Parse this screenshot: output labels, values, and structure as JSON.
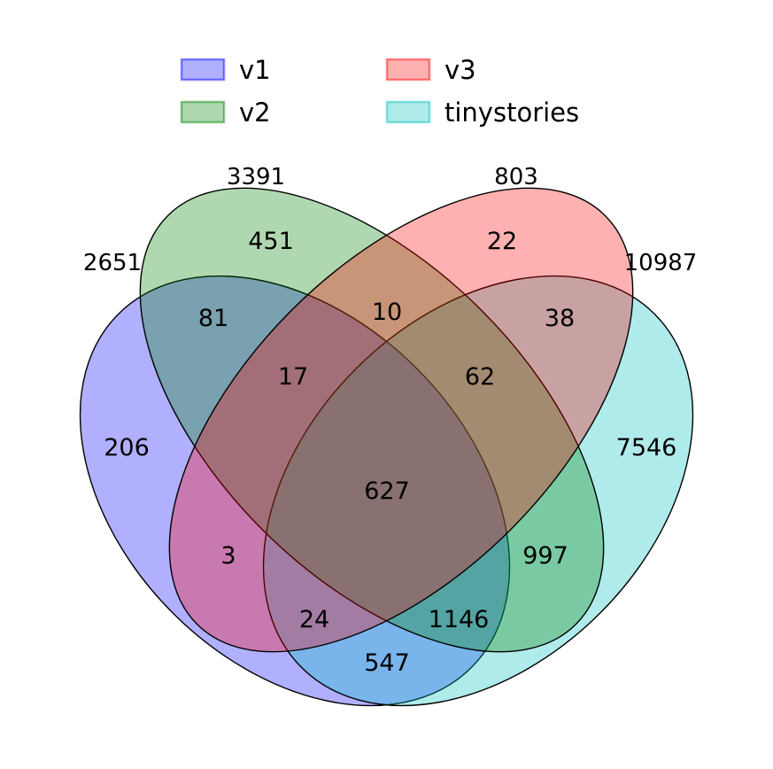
{
  "legend": {
    "items": [
      {
        "label": "v1",
        "color": "#0000ff"
      },
      {
        "label": "v2",
        "color": "#008000"
      },
      {
        "label": "v3",
        "color": "#ff0000"
      },
      {
        "label": "tinystories",
        "color": "#00c0c0"
      }
    ]
  },
  "set_totals": {
    "v1": "2651",
    "v2": "3391",
    "v3": "803",
    "tinystories": "10987"
  },
  "regions": {
    "v1_only": "206",
    "v2_only": "451",
    "v3_only": "22",
    "tinystories_only": "7546",
    "v1_v2": "81",
    "v2_v3": "10",
    "v3_tinystories": "38",
    "v1_v2_v3": "17",
    "v2_v3_tinystories": "62",
    "all_four": "627",
    "v1_v3": "3",
    "v2_tinystories": "997",
    "v1_v3_tinystories": "24",
    "v1_v2_tinystories": "1146",
    "v1_tinystories": "547"
  }
}
